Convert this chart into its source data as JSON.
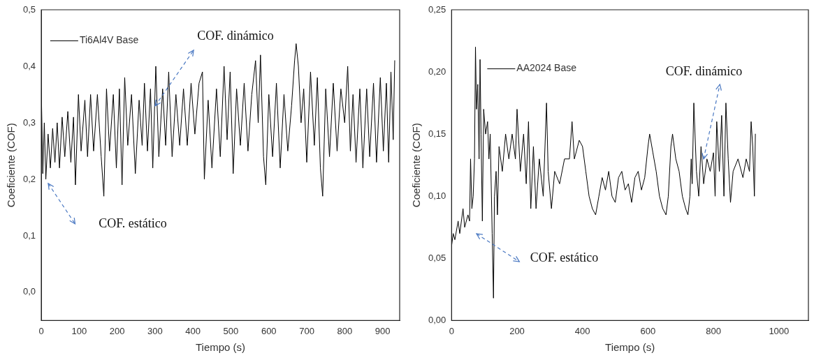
{
  "chart_data": [
    {
      "type": "line",
      "xlabel": "Tiempo (s)",
      "ylabel": "Coeficiente (COF)",
      "xlim": [
        0,
        945
      ],
      "xticks": [
        0,
        100,
        200,
        300,
        400,
        500,
        600,
        700,
        800,
        900
      ],
      "ylim": [
        -0.05,
        0.5
      ],
      "yticks": [
        {
          "value": 0,
          "label": "0,0"
        },
        {
          "value": 0.1,
          "label": "0,1"
        },
        {
          "value": 0.2,
          "label": "0,2"
        },
        {
          "value": 0.3,
          "label": "0,3"
        },
        {
          "value": 0.4,
          "label": "0,4"
        },
        {
          "value": 0.5,
          "label": "0,5"
        }
      ],
      "legend": "top left",
      "grid": false,
      "marker": "none",
      "annotations": [
        {
          "text": "COF. dinámico",
          "x": 300,
          "y": 0.33
        },
        "COF. estático"
      ],
      "series": [
        {
          "name": "Ti6Al4V Base",
          "color": "#000000",
          "x": [
            0,
            4,
            8,
            12,
            18,
            24,
            30,
            36,
            42,
            48,
            55,
            62,
            70,
            78,
            85,
            90,
            98,
            105,
            115,
            122,
            130,
            138,
            148,
            158,
            165,
            172,
            180,
            190,
            198,
            206,
            213,
            220,
            228,
            238,
            248,
            258,
            266,
            272,
            280,
            288,
            294,
            302,
            310,
            320,
            328,
            336,
            345,
            355,
            365,
            375,
            385,
            395,
            405,
            416,
            425,
            430,
            440,
            450,
            462,
            472,
            482,
            490,
            498,
            506,
            515,
            525,
            535,
            545,
            555,
            565,
            572,
            578,
            586,
            592,
            600,
            610,
            620,
            630,
            640,
            650,
            660,
            668,
            672,
            678,
            685,
            692,
            700,
            710,
            720,
            728,
            736,
            742,
            750,
            760,
            770,
            780,
            790,
            800,
            808,
            815,
            822,
            830,
            840,
            848,
            858,
            866,
            876,
            884,
            894,
            902,
            910,
            916,
            922,
            928,
            932
          ],
          "values": [
            0.36,
            0.21,
            0.3,
            0.2,
            0.28,
            0.22,
            0.29,
            0.23,
            0.3,
            0.22,
            0.31,
            0.24,
            0.32,
            0.23,
            0.31,
            0.19,
            0.35,
            0.25,
            0.34,
            0.24,
            0.35,
            0.25,
            0.35,
            0.24,
            0.17,
            0.36,
            0.25,
            0.35,
            0.22,
            0.36,
            0.19,
            0.38,
            0.26,
            0.35,
            0.21,
            0.34,
            0.26,
            0.37,
            0.25,
            0.36,
            0.22,
            0.4,
            0.24,
            0.36,
            0.26,
            0.39,
            0.24,
            0.35,
            0.26,
            0.36,
            0.26,
            0.37,
            0.28,
            0.37,
            0.39,
            0.2,
            0.34,
            0.22,
            0.36,
            0.24,
            0.4,
            0.27,
            0.39,
            0.21,
            0.36,
            0.26,
            0.37,
            0.25,
            0.35,
            0.41,
            0.3,
            0.42,
            0.24,
            0.19,
            0.35,
            0.24,
            0.37,
            0.22,
            0.35,
            0.25,
            0.33,
            0.41,
            0.44,
            0.4,
            0.3,
            0.36,
            0.23,
            0.39,
            0.26,
            0.38,
            0.22,
            0.17,
            0.36,
            0.24,
            0.37,
            0.25,
            0.36,
            0.3,
            0.4,
            0.25,
            0.35,
            0.23,
            0.36,
            0.22,
            0.36,
            0.24,
            0.37,
            0.23,
            0.38,
            0.25,
            0.37,
            0.23,
            0.39,
            0.27,
            0.41
          ]
        }
      ]
    },
    {
      "type": "line",
      "xlabel": "Tiempo (s)",
      "ylabel": "Coeficiente (COF)",
      "xlim": [
        0,
        1090
      ],
      "xticks": [
        0,
        200,
        400,
        600,
        800,
        1000
      ],
      "ylim": [
        0,
        0.25
      ],
      "yticks": [
        {
          "value": 0,
          "label": "0,00"
        },
        {
          "value": 0.05,
          "label": "0,05"
        },
        {
          "value": 0.1,
          "label": "0,10"
        },
        {
          "value": 0.15,
          "label": "0,15"
        },
        {
          "value": 0.2,
          "label": "0,20"
        },
        {
          "value": 0.25,
          "label": "0,25"
        }
      ],
      "legend": "top",
      "grid": false,
      "marker": "none",
      "annotations": [
        {
          "text": "COF. dinámico",
          "x": 770,
          "y": 0.13
        },
        "COF. estático"
      ],
      "series": [
        {
          "name": "AA2024 Base",
          "color": "#000000",
          "x": [
            0,
            5,
            10,
            20,
            25,
            35,
            40,
            50,
            55,
            58,
            62,
            66,
            70,
            73,
            76,
            80,
            84,
            87,
            90,
            94,
            98,
            104,
            110,
            114,
            118,
            124,
            128,
            131,
            136,
            140,
            145,
            155,
            165,
            175,
            185,
            195,
            200,
            210,
            220,
            228,
            235,
            242,
            250,
            258,
            268,
            280,
            290,
            295,
            305,
            315,
            330,
            345,
            360,
            368,
            375,
            390,
            400,
            410,
            420,
            430,
            440,
            450,
            460,
            470,
            480,
            490,
            500,
            510,
            520,
            530,
            540,
            550,
            560,
            570,
            580,
            590,
            600,
            605,
            615,
            625,
            635,
            645,
            655,
            662,
            670,
            675,
            685,
            695,
            705,
            715,
            722,
            728,
            732,
            735,
            740,
            748,
            755,
            762,
            770,
            780,
            790,
            800,
            805,
            810,
            818,
            825,
            832,
            838,
            845,
            852,
            860,
            875,
            890,
            900,
            910,
            915,
            920,
            925,
            928
          ],
          "values": [
            0.06,
            0.07,
            0.065,
            0.08,
            0.07,
            0.09,
            0.075,
            0.085,
            0.08,
            0.13,
            0.09,
            0.1,
            0.13,
            0.22,
            0.17,
            0.19,
            0.13,
            0.21,
            0.15,
            0.08,
            0.17,
            0.15,
            0.16,
            0.13,
            0.15,
            0.07,
            0.018,
            0.1,
            0.12,
            0.085,
            0.14,
            0.12,
            0.15,
            0.13,
            0.15,
            0.13,
            0.17,
            0.12,
            0.15,
            0.11,
            0.16,
            0.09,
            0.14,
            0.09,
            0.13,
            0.1,
            0.175,
            0.12,
            0.09,
            0.12,
            0.11,
            0.13,
            0.13,
            0.16,
            0.13,
            0.145,
            0.14,
            0.12,
            0.1,
            0.09,
            0.085,
            0.1,
            0.115,
            0.105,
            0.12,
            0.1,
            0.095,
            0.115,
            0.12,
            0.105,
            0.11,
            0.095,
            0.115,
            0.12,
            0.105,
            0.115,
            0.14,
            0.15,
            0.135,
            0.12,
            0.1,
            0.09,
            0.085,
            0.1,
            0.14,
            0.15,
            0.13,
            0.12,
            0.1,
            0.09,
            0.085,
            0.1,
            0.13,
            0.11,
            0.175,
            0.12,
            0.1,
            0.14,
            0.11,
            0.13,
            0.12,
            0.135,
            0.1,
            0.16,
            0.12,
            0.165,
            0.1,
            0.175,
            0.13,
            0.095,
            0.12,
            0.13,
            0.115,
            0.13,
            0.12,
            0.16,
            0.14,
            0.1,
            0.15
          ]
        }
      ]
    }
  ]
}
